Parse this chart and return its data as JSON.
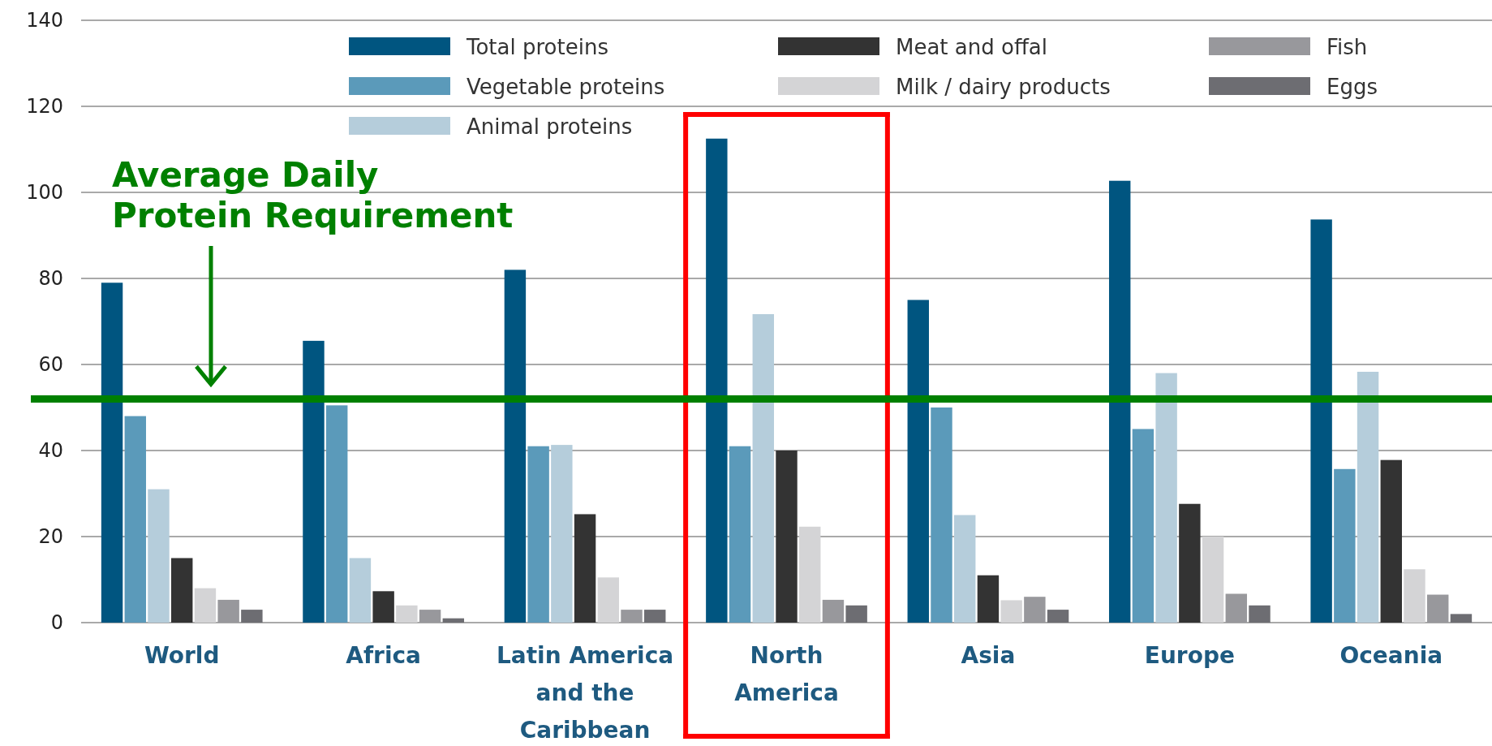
{
  "chart_data": {
    "type": "bar",
    "categories": [
      "World",
      "Africa",
      "Latin America and the Caribbean",
      "North America",
      "Asia",
      "Europe",
      "Oceania"
    ],
    "series": [
      {
        "name": "Total proteins",
        "color": "#005580",
        "values": [
          79,
          65.5,
          82,
          112.5,
          75,
          102.7,
          93.7
        ]
      },
      {
        "name": "Vegetable proteins",
        "color": "#5b9aba",
        "values": [
          48,
          50.5,
          41,
          41,
          50,
          45,
          35.7
        ]
      },
      {
        "name": "Animal proteins",
        "color": "#b5cddb",
        "values": [
          31,
          15,
          41.3,
          71.7,
          25,
          58,
          58.3
        ]
      },
      {
        "name": "Meat and offal",
        "color": "#333333",
        "values": [
          15,
          7.3,
          25.2,
          40,
          11,
          27.6,
          37.8
        ]
      },
      {
        "name": "Milk / dairy products",
        "color": "#d4d4d6",
        "values": [
          8,
          4,
          10.5,
          22.3,
          5.2,
          20,
          12.4
        ]
      },
      {
        "name": "Fish",
        "color": "#98989c",
        "values": [
          5.3,
          3,
          3,
          5.3,
          6,
          6.7,
          6.5
        ]
      },
      {
        "name": "Eggs",
        "color": "#6d6d72",
        "values": [
          3,
          1,
          3,
          4,
          3,
          4,
          2
        ]
      }
    ],
    "ylim": [
      0,
      140
    ],
    "yticks": [
      0,
      20,
      40,
      60,
      80,
      100,
      120,
      140
    ],
    "grid": "y",
    "legend": "top",
    "ref_lines": [
      {
        "axis": "y",
        "value": 52,
        "label": "Average Daily Protein Requirement",
        "color": "#008000"
      }
    ]
  }
}
